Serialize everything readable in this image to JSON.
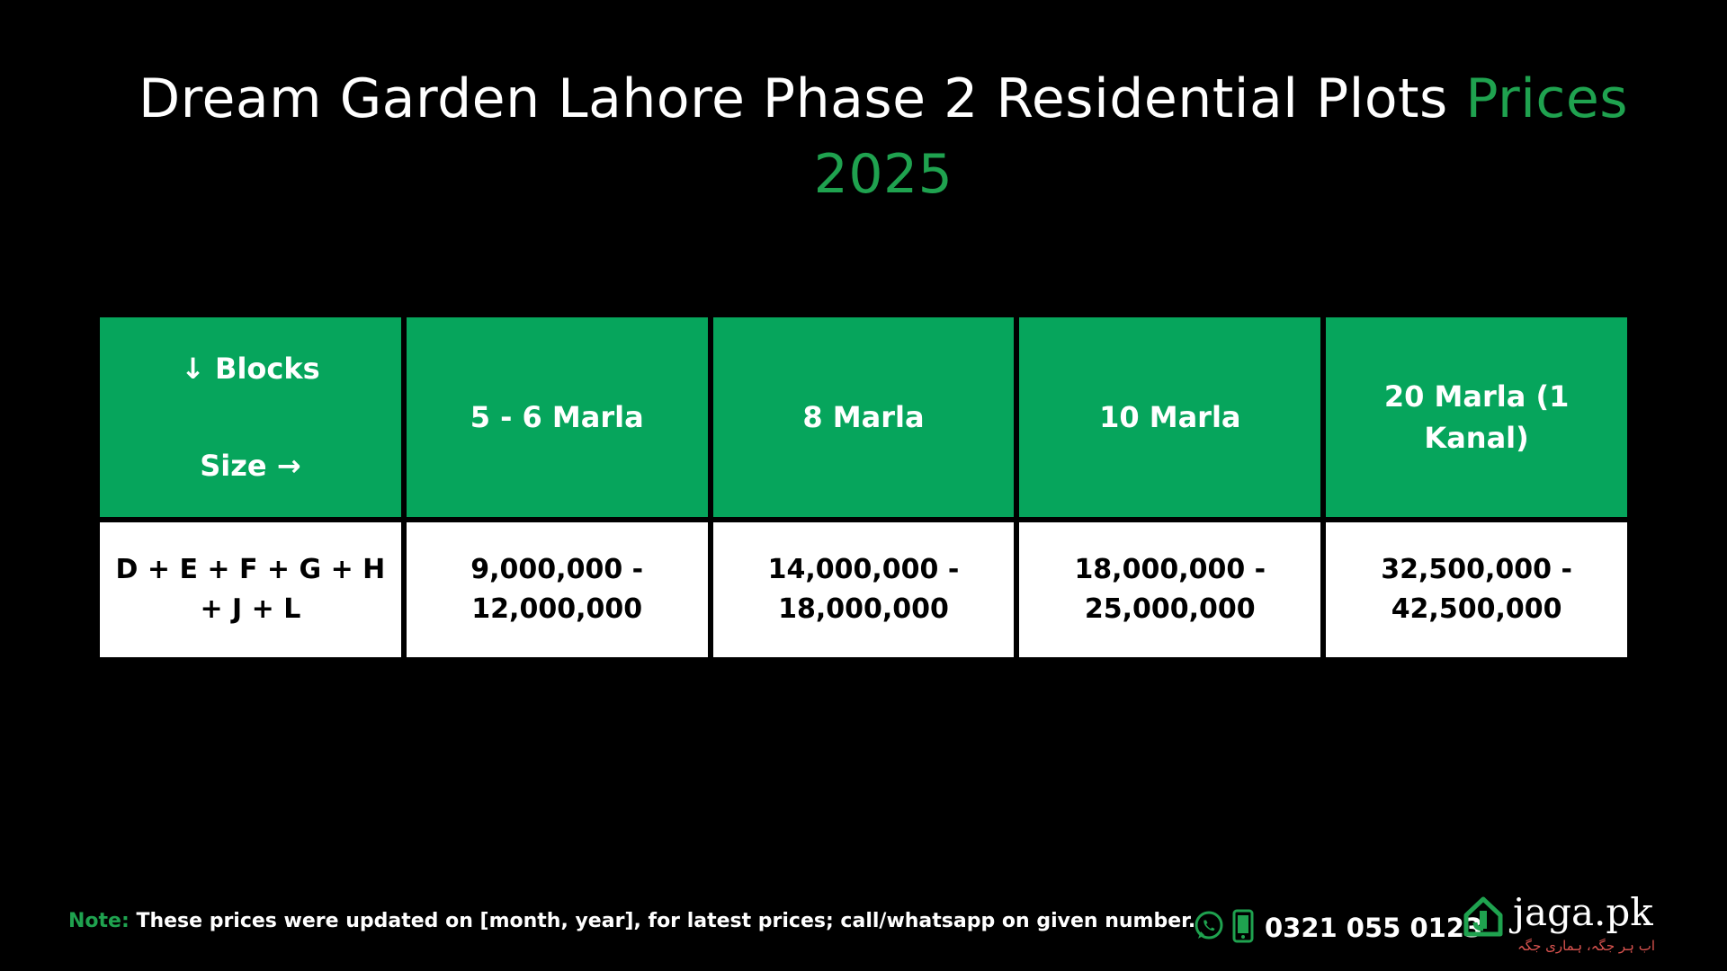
{
  "title": {
    "main": "Dream Garden Lahore Phase 2 Residential Plots",
    "accent": "Prices 2025"
  },
  "table": {
    "header": {
      "corner_top": "↓ Blocks",
      "corner_bottom": "Size →",
      "sizes": [
        "5 - 6 Marla",
        "8 Marla",
        "10 Marla",
        "20 Marla (1 Kanal)"
      ]
    },
    "row": {
      "blocks": "D + E + F + G + H + J + L",
      "prices": [
        "9,000,000 - 12,000,000",
        "14,000,000 - 18,000,000",
        "18,000,000 - 25,000,000",
        "32,500,000 - 42,500,000"
      ]
    }
  },
  "footer": {
    "note_label": "Note:",
    "note_text": "These prices were updated on [month, year], for latest prices; call/whatsapp on given number.",
    "phone": "0321 055 0123",
    "icons": [
      "whatsapp-icon",
      "mobile-phone-icon",
      "house-icon"
    ]
  },
  "brand": {
    "name": "jaga.pk",
    "tagline": "اب ہر جگہ، ہماری جگہ"
  },
  "colors": {
    "background": "#000000",
    "header_green": "#06a55c",
    "accent_green": "#1fa24f",
    "cell_white": "#ffffff",
    "tagline_red": "#d9534f"
  }
}
